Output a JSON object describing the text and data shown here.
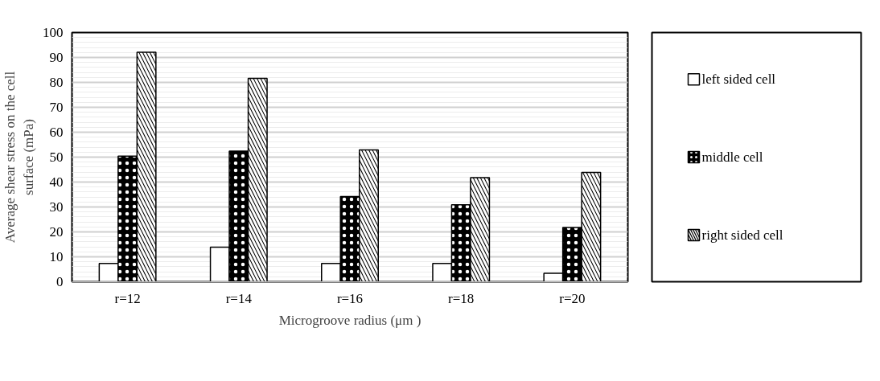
{
  "chart_data": {
    "type": "bar",
    "xlabel": "Microgroove radius (μm )",
    "ylabel": "Average shear stress on the cell surface (mPa)",
    "categories": [
      "r=12",
      "r=14",
      "r=16",
      "r=18",
      "r=20"
    ],
    "series": [
      {
        "name": "left sided cell",
        "color": "#ffffff",
        "values": [
          7.3,
          13.9,
          7.3,
          7.3,
          3.4
        ]
      },
      {
        "name": "middle cell",
        "color": "#000000",
        "values": [
          50.4,
          52.4,
          34.2,
          30.9,
          21.8
        ]
      },
      {
        "name": "right sided cell",
        "color": "#000000",
        "values": [
          92.1,
          81.6,
          52.9,
          41.8,
          43.9
        ]
      }
    ],
    "ylim": [
      0,
      100
    ],
    "yticks": [
      0,
      10,
      20,
      30,
      40,
      50,
      60,
      70,
      80,
      90,
      100
    ],
    "grid": "y",
    "legend": "right"
  }
}
